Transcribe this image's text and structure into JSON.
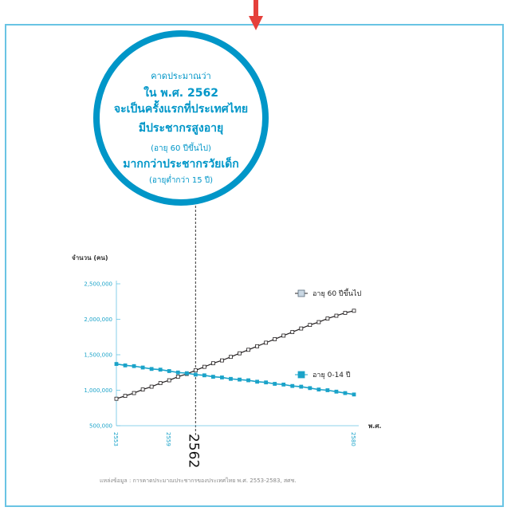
{
  "callout": {
    "line1": "คาดประมาณว่า",
    "line2": "ใน พ.ศ. 2562",
    "line3": "จะเป็นครั้งแรกที่ประเทศไทย",
    "line4": "มีประชากรสูงอายุ",
    "line5": "(อายุ 60 ปีขึ้นไป)",
    "line6": "มากกว่าประชากรวัยเด็ก",
    "line7": "(อายุต่ำกว่า 15 ปี)"
  },
  "colors": {
    "frame": "#69c4e4",
    "accent": "#0096c8",
    "arrow": "#e5403b",
    "elderly": "#231f20",
    "child": "#1ba3c9"
  },
  "source": "แหล่งข้อมูล : การคาดประมาณประชากรของประเทศไทย พ.ศ. 2553-2583, สศช.",
  "chart_data": {
    "type": "line",
    "ylabel": "จำนวน (คน)",
    "xlabel": "พ.ศ.",
    "ylim": [
      500000,
      2500000
    ],
    "yticks": [
      500000,
      1000000,
      1500000,
      2000000,
      2500000
    ],
    "ytick_labels": [
      "500,000",
      "1,000,000",
      "1,500,000",
      "2,000,000",
      "2,500,000"
    ],
    "xlim": [
      2553,
      2580
    ],
    "xtick_labels": [
      "2553",
      "2559",
      "2580"
    ],
    "highlight_x": 2562,
    "highlight_label": "2562",
    "x": [
      2553,
      2554,
      2555,
      2556,
      2557,
      2558,
      2559,
      2560,
      2561,
      2562,
      2563,
      2564,
      2565,
      2566,
      2567,
      2568,
      2569,
      2570,
      2571,
      2572,
      2573,
      2574,
      2575,
      2576,
      2577,
      2578,
      2579,
      2580
    ],
    "series": [
      {
        "name": "อายุ 60 ปีขึ้นไป",
        "marker": "open-square",
        "values": [
          880000,
          920000,
          960000,
          1010000,
          1050000,
          1100000,
          1140000,
          1190000,
          1230000,
          1280000,
          1330000,
          1380000,
          1420000,
          1470000,
          1520000,
          1570000,
          1620000,
          1670000,
          1720000,
          1770000,
          1820000,
          1870000,
          1920000,
          1960000,
          2010000,
          2050000,
          2090000,
          2120000
        ]
      },
      {
        "name": "อายุ 0-14 ปี",
        "marker": "filled-square",
        "values": [
          1370000,
          1350000,
          1340000,
          1320000,
          1300000,
          1290000,
          1270000,
          1250000,
          1240000,
          1220000,
          1210000,
          1190000,
          1180000,
          1160000,
          1150000,
          1140000,
          1120000,
          1110000,
          1090000,
          1080000,
          1060000,
          1050000,
          1030000,
          1010000,
          1000000,
          980000,
          960000,
          940000
        ]
      }
    ]
  }
}
